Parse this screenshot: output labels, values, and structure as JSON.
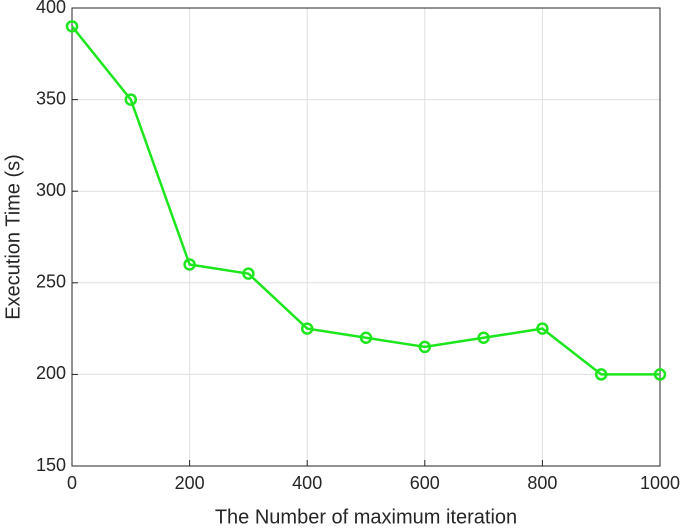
{
  "chart_data": {
    "type": "line",
    "x_label": "The Number of maximum iteration",
    "y_label": "Execution Time (s)",
    "x": [
      0,
      100,
      200,
      300,
      400,
      500,
      600,
      700,
      800,
      900,
      1000
    ],
    "series": [
      {
        "color": "#1ee61e",
        "values": [
          390,
          350,
          260,
          255,
          225,
          220,
          215,
          220,
          225,
          200,
          200
        ]
      }
    ],
    "xlim": [
      0,
      1000
    ],
    "xticks": [
      0,
      200,
      400,
      600,
      800,
      1000
    ],
    "ylim": [
      150,
      400
    ],
    "yticks": [
      150,
      200,
      250,
      300,
      350,
      400
    ],
    "grid": true,
    "markers": true
  }
}
